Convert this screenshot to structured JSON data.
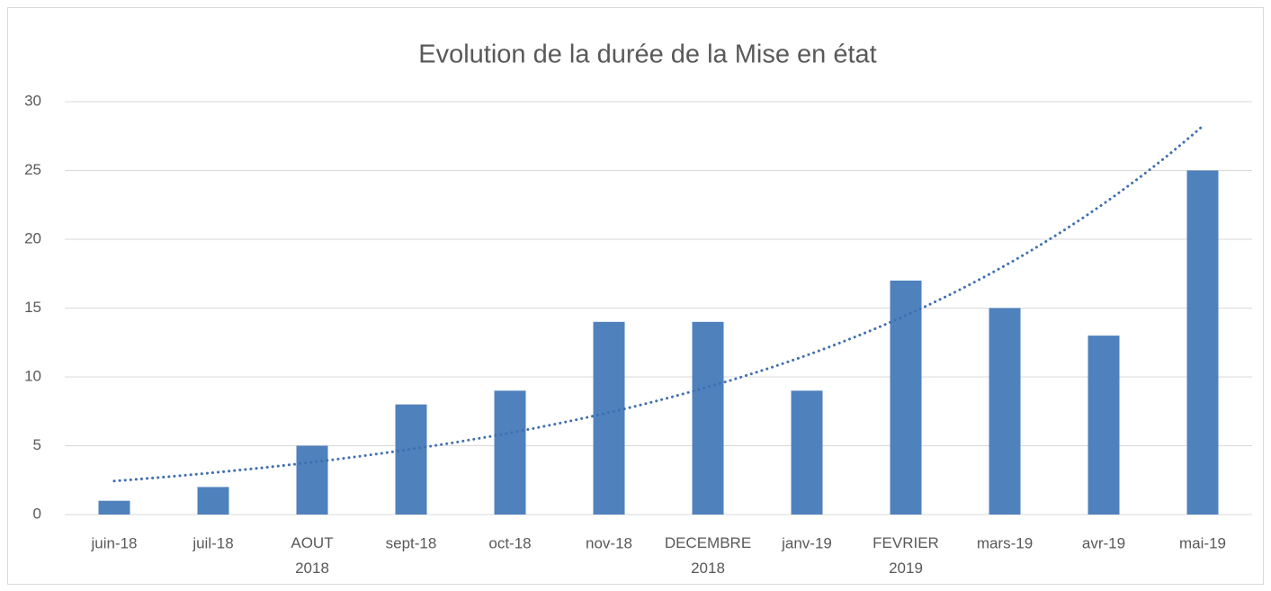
{
  "chart_data": {
    "type": "bar",
    "title": "Evolution de la durée de la Mise en état",
    "categories": [
      "juin-18",
      "juil-18",
      "AOUT 2018",
      "sept-18",
      "oct-18",
      "nov-18",
      "DECEMBRE 2018",
      "janv-19",
      "FEVRIER 2019",
      "mars-19",
      "avr-19",
      "mai-19"
    ],
    "values": [
      1,
      2,
      5,
      8,
      9,
      14,
      14,
      9,
      17,
      15,
      13,
      25
    ],
    "color": "#4f81bd",
    "ylim": [
      0,
      30
    ],
    "yticks": [
      0,
      5,
      10,
      15,
      20,
      25,
      30
    ],
    "grid": true,
    "trendline": "exponential",
    "trendline_color": "#3f6fb0"
  }
}
